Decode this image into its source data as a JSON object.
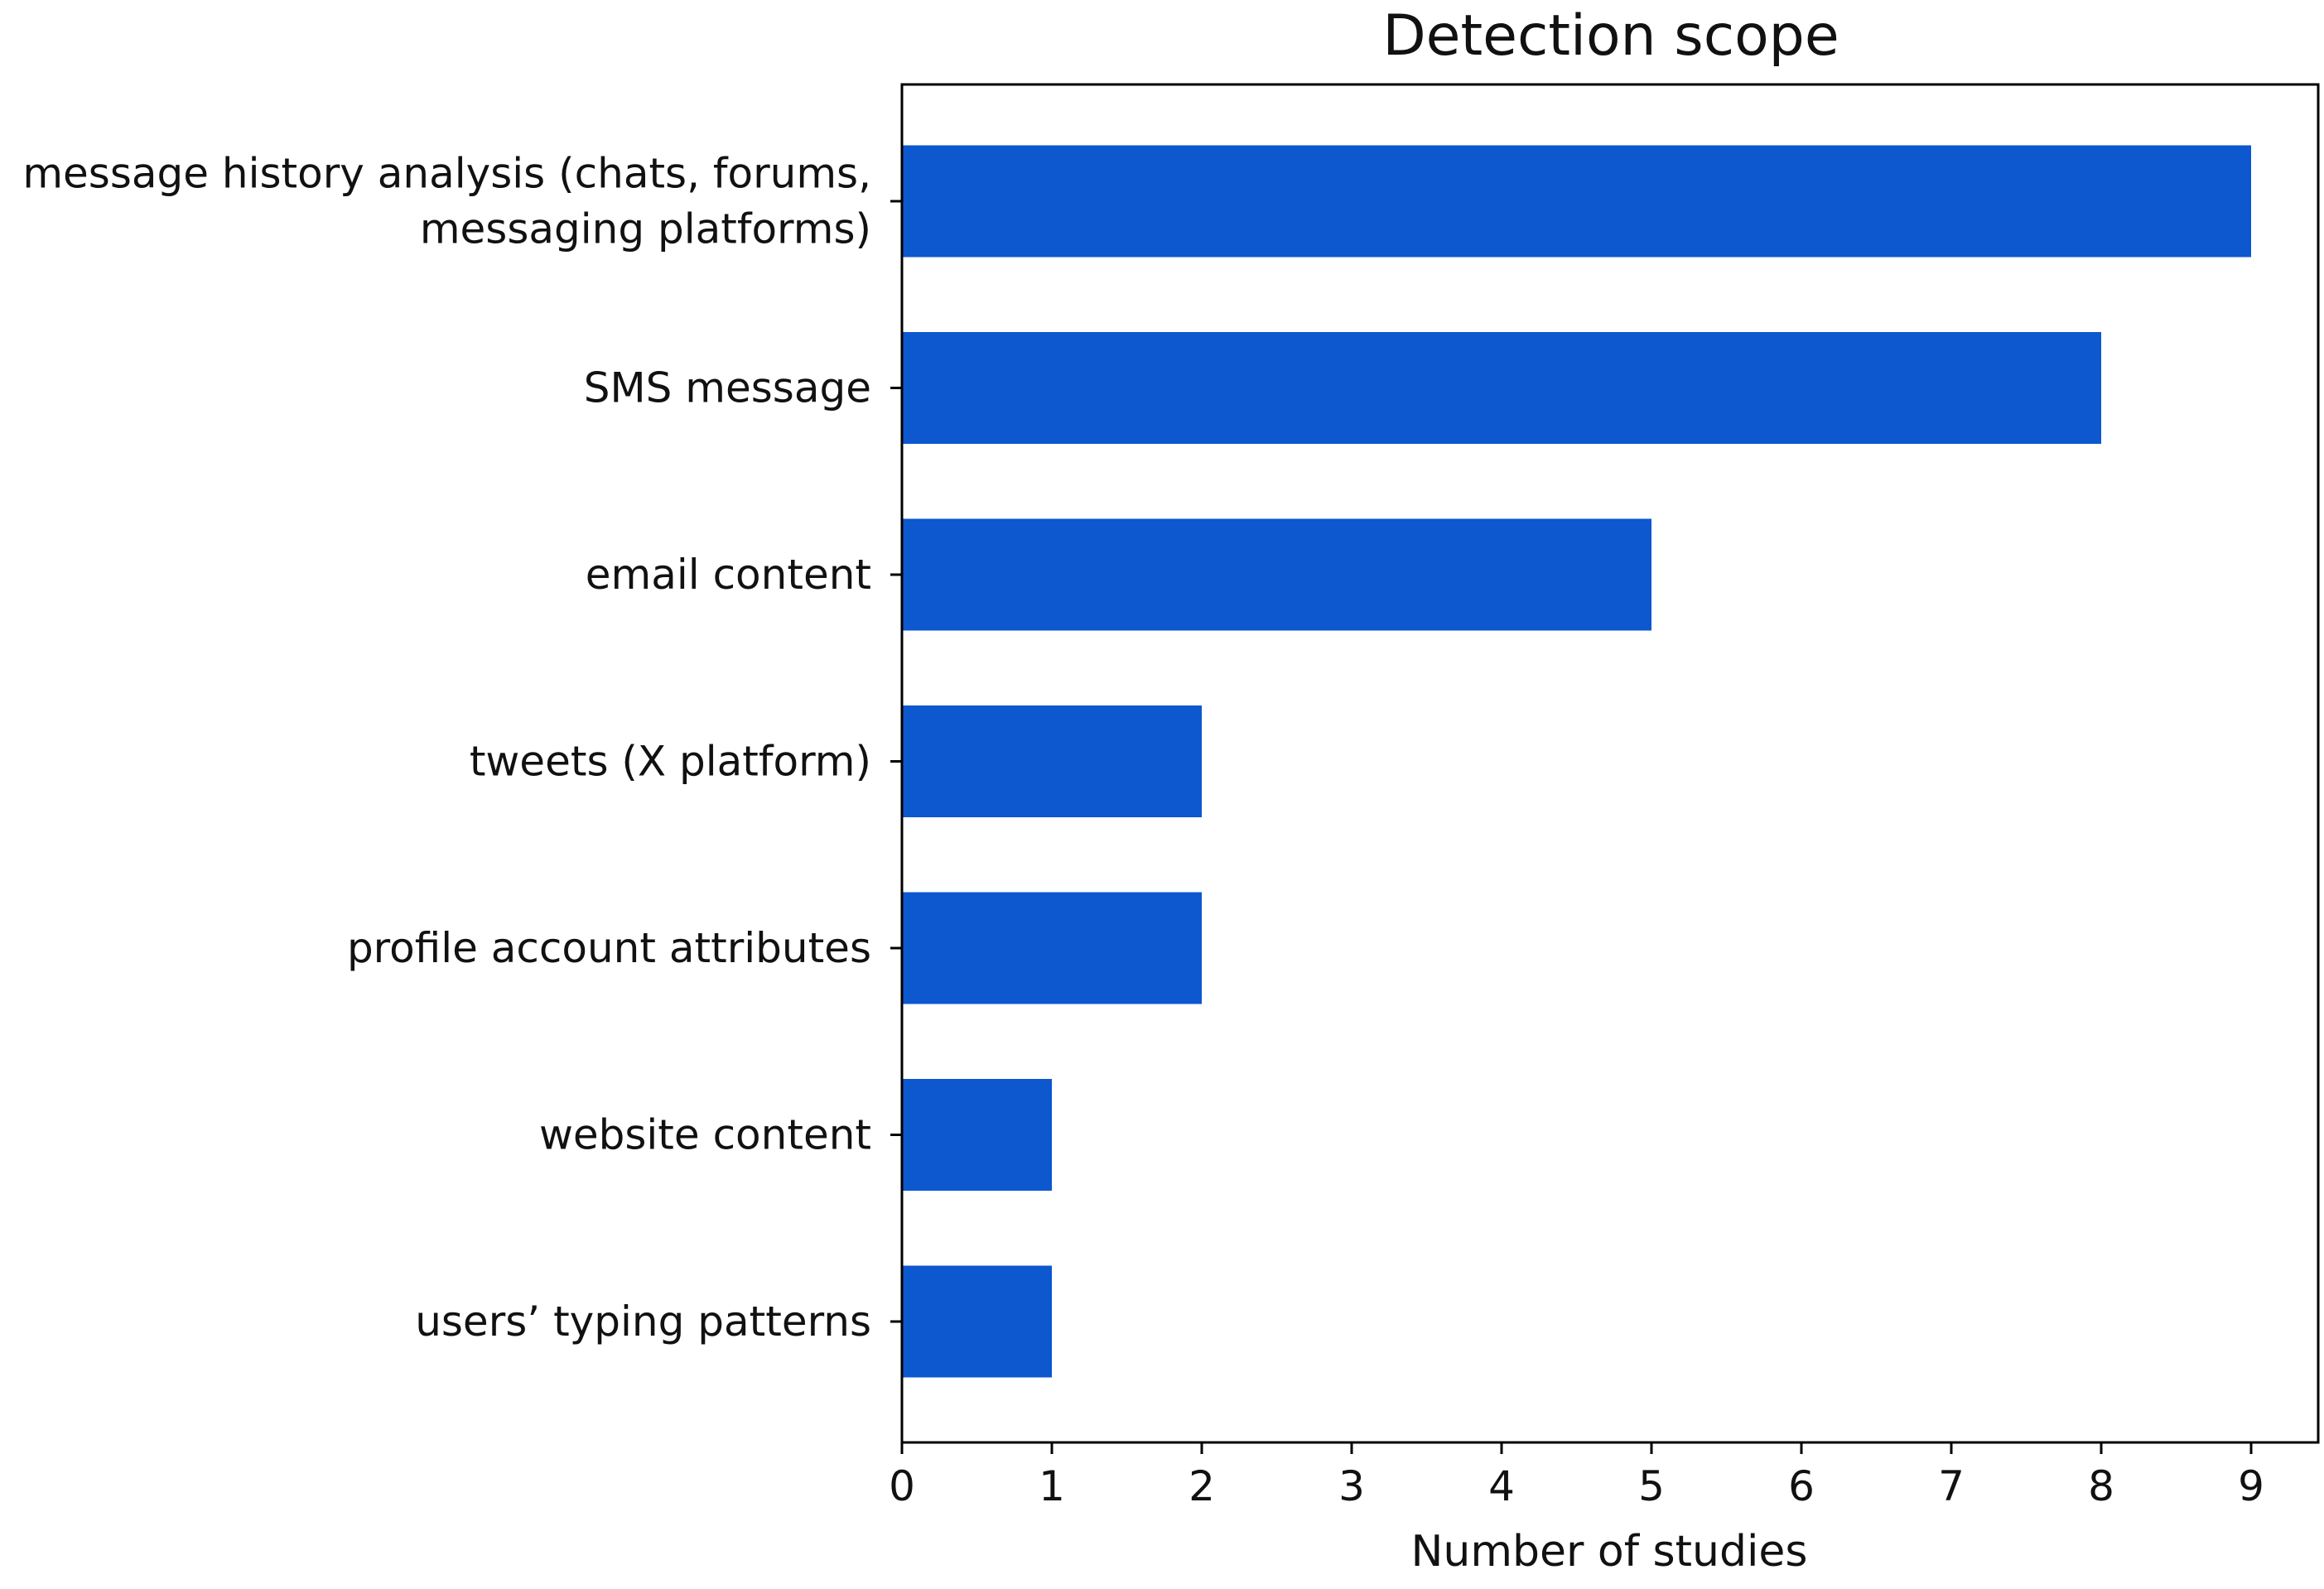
{
  "chart_data": {
    "type": "bar",
    "orientation": "horizontal",
    "title": "Detection scope",
    "xlabel": "Number of studies",
    "ylabel": "",
    "categories": [
      [
        "message history analysis (chats, forums,",
        "messaging platforms)"
      ],
      [
        "SMS message"
      ],
      [
        "email content"
      ],
      [
        "tweets (X platform)"
      ],
      [
        "profile account attributes"
      ],
      [
        "website content"
      ],
      [
        "users’ typing patterns"
      ]
    ],
    "values": [
      9,
      8,
      5,
      2,
      2,
      1,
      1
    ],
    "xlim": [
      0,
      9.45
    ],
    "xticks": [
      0,
      1,
      2,
      3,
      4,
      5,
      6,
      7,
      8,
      9
    ],
    "grid": false,
    "legend": "none",
    "bar_color": "#0d57cf"
  }
}
